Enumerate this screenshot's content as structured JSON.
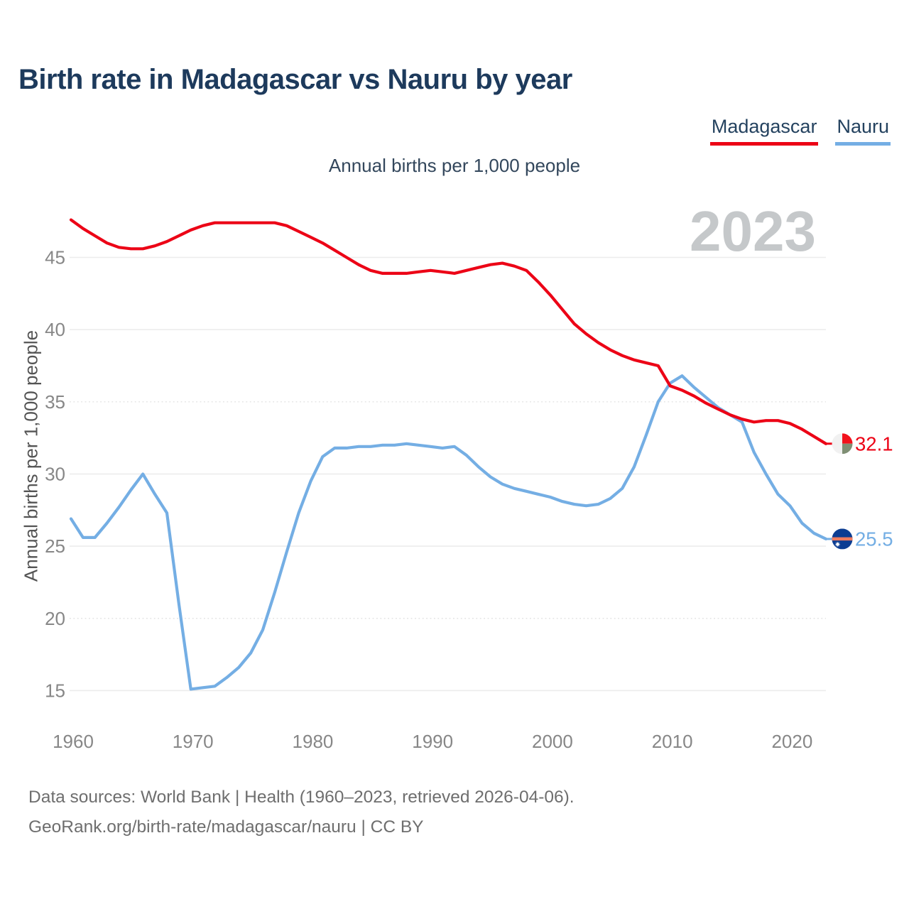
{
  "header": {
    "title": "Birth rate in Madagascar vs Nauru by year"
  },
  "subtitle": "Annual births per 1,000 people",
  "watermark": "2023",
  "legend": [
    {
      "label": "Madagascar",
      "color": "#ec0316"
    },
    {
      "label": "Nauru",
      "color": "#74aee4"
    }
  ],
  "footer": {
    "line1": "Data sources: World Bank | Health (1960–2023, retrieved 2026-04-06).",
    "line2": "GeoRank.org/birth-rate/madagascar/nauru | CC BY"
  },
  "colors": {
    "madagascar_line": "#ec0316",
    "nauru_line": "#74aee4",
    "title_text": "#1d3a5c",
    "tick_text": "#878787",
    "gridline": "#ececec",
    "watermark_text": "#c5c8ca"
  },
  "flags": {
    "madagascar": {
      "white": "#f1f1f1",
      "red": "#f2121c",
      "green": "#7f8f74"
    },
    "nauru": {
      "blue": "#0c3d92",
      "stripe": "#ef7b5d",
      "star": "#ffffff"
    }
  },
  "chart_data": {
    "type": "line",
    "title": "Birth rate in Madagascar vs Nauru by year",
    "subtitle": "Annual births per 1,000 people",
    "xlabel": "",
    "ylabel": "Annual births per 1,000 people",
    "xlim": [
      1960,
      2023
    ],
    "ylim": [
      13.5,
      48.5
    ],
    "x_ticks": [
      1960,
      1970,
      1980,
      1990,
      2000,
      2010,
      2020
    ],
    "y_ticks": [
      15,
      20,
      25,
      30,
      35,
      40,
      45
    ],
    "grid": "horizontal",
    "legend_position": "top-right",
    "watermark": "2023",
    "years": [
      1960,
      1961,
      1962,
      1963,
      1964,
      1965,
      1966,
      1967,
      1968,
      1969,
      1970,
      1971,
      1972,
      1973,
      1974,
      1975,
      1976,
      1977,
      1978,
      1979,
      1980,
      1981,
      1982,
      1983,
      1984,
      1985,
      1986,
      1987,
      1988,
      1989,
      1990,
      1991,
      1992,
      1993,
      1994,
      1995,
      1996,
      1997,
      1998,
      1999,
      2000,
      2001,
      2002,
      2003,
      2004,
      2005,
      2006,
      2007,
      2008,
      2009,
      2010,
      2011,
      2012,
      2013,
      2014,
      2015,
      2016,
      2017,
      2018,
      2019,
      2020,
      2021,
      2022,
      2023
    ],
    "series": [
      {
        "name": "Madagascar",
        "color": "#ec0316",
        "end_label": "32.1",
        "end_value": 32.1,
        "values": [
          47.6,
          47.0,
          46.5,
          46.0,
          45.7,
          45.6,
          45.6,
          45.8,
          46.1,
          46.5,
          46.9,
          47.2,
          47.4,
          47.4,
          47.4,
          47.4,
          47.4,
          47.4,
          47.2,
          46.8,
          46.4,
          46.0,
          45.5,
          45.0,
          44.5,
          44.1,
          43.9,
          43.9,
          43.9,
          44.0,
          44.1,
          44.0,
          43.9,
          44.1,
          44.3,
          44.5,
          44.6,
          44.4,
          44.1,
          43.3,
          42.4,
          41.4,
          40.4,
          39.7,
          39.1,
          38.6,
          38.2,
          37.9,
          37.7,
          37.5,
          36.1,
          35.8,
          35.4,
          34.9,
          34.5,
          34.1,
          33.8,
          33.6,
          33.7,
          33.7,
          33.5,
          33.1,
          32.6,
          32.1
        ]
      },
      {
        "name": "Nauru",
        "color": "#74aee4",
        "end_label": "25.5",
        "end_value": 25.5,
        "values": [
          26.9,
          25.6,
          25.6,
          26.6,
          27.7,
          28.9,
          30.0,
          28.6,
          27.3,
          21.0,
          15.1,
          15.2,
          15.3,
          15.9,
          16.6,
          17.6,
          19.2,
          21.8,
          24.6,
          27.3,
          29.5,
          31.2,
          31.8,
          31.8,
          31.9,
          31.9,
          32.0,
          32.0,
          32.1,
          32.0,
          31.9,
          31.8,
          31.9,
          31.3,
          30.5,
          29.8,
          29.3,
          29.0,
          28.8,
          28.6,
          28.4,
          28.1,
          27.9,
          27.8,
          27.9,
          28.3,
          29.0,
          30.5,
          32.7,
          35.0,
          36.3,
          36.8,
          36.0,
          35.3,
          34.6,
          34.1,
          33.6,
          31.5,
          30.0,
          28.6,
          27.8,
          26.6,
          25.9,
          25.5
        ]
      }
    ]
  }
}
